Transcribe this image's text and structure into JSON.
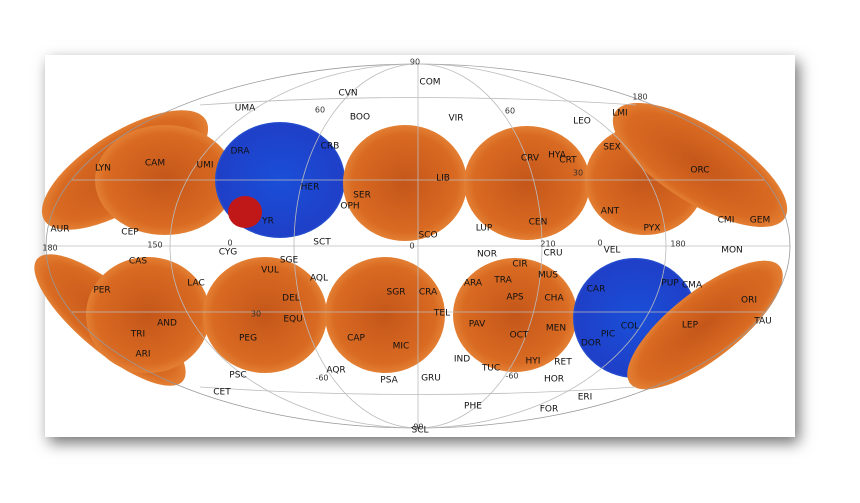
{
  "constellations": [
    "COM",
    "CVN",
    "UMA",
    "BOO",
    "VIR",
    "LYN",
    "CAM",
    "UMI",
    "DRA",
    "CRB",
    "HER",
    "SER",
    "OPH",
    "LIB",
    "CRV",
    "HYA",
    "CRT",
    "LEO",
    "LMI",
    "SEX",
    "ORC",
    "CMI",
    "GEM",
    "ANT",
    "PYX",
    "CEN",
    "LUP",
    "SCO",
    "YR",
    "SCT",
    "AUR",
    "CEP",
    "CYG",
    "SGE",
    "VUL",
    "AQL",
    "NOR",
    "CRU",
    "VEL",
    "MON",
    "CAS",
    "LAC",
    "PER",
    "DEL",
    "EQU",
    "SGR",
    "CRA",
    "ARA",
    "TRA",
    "CIR",
    "MUS",
    "APS",
    "CHA",
    "CAR",
    "PUP",
    "CMA",
    "ORI",
    "TAU",
    "LEP",
    "PAV",
    "TEL",
    "OCT",
    "MEN",
    "DOR",
    "PIC",
    "COL",
    "RET",
    "HYI",
    "IND",
    "TUC",
    "AND",
    "TRI",
    "ARI",
    "PEG",
    "CAP",
    "MIC",
    "AQR",
    "PSA",
    "GRU",
    "PSC",
    "CET",
    "HOR",
    "ERI",
    "PHE",
    "FOR",
    "SCL"
  ],
  "grid_labels": [
    "90",
    "60",
    "60",
    "30",
    "180",
    "150",
    "0",
    "0",
    "0",
    "210",
    "180",
    "180",
    "30",
    "-60",
    "-60",
    "-90"
  ]
}
